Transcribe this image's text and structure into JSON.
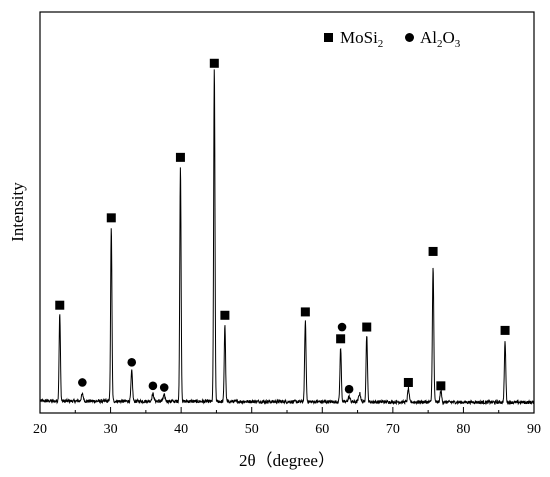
{
  "chart_data": {
    "type": "line",
    "title": "",
    "xlabel": "2θ（degree）",
    "ylabel": "Intensity",
    "xlim": [
      20,
      90
    ],
    "ylim": [
      0,
      100
    ],
    "x_ticks": [
      20,
      30,
      40,
      50,
      60,
      70,
      80,
      90
    ],
    "x_tick_labels": [
      "20",
      "30",
      "40",
      "50",
      "60",
      "70",
      "80",
      "90"
    ],
    "grid": false,
    "legend_position": "top-right",
    "legend": [
      {
        "marker": "square",
        "text": "MoSi",
        "sub": "2",
        "text2": ""
      },
      {
        "marker": "circle",
        "text": "Al",
        "sub": "2",
        "text2": "O",
        "sub2": "3"
      }
    ],
    "baseline": 1.5,
    "peaks": [
      {
        "x": 22.8,
        "y": 26,
        "w": 0.13
      },
      {
        "x": 26.0,
        "y": 2,
        "w": 0.2
      },
      {
        "x": 30.1,
        "y": 52,
        "w": 0.13
      },
      {
        "x": 33.0,
        "y": 9,
        "w": 0.15
      },
      {
        "x": 36.0,
        "y": 2.2,
        "w": 0.2
      },
      {
        "x": 37.6,
        "y": 1.8,
        "w": 0.2
      },
      {
        "x": 39.9,
        "y": 70,
        "w": 0.13
      },
      {
        "x": 44.7,
        "y": 99,
        "w": 0.13
      },
      {
        "x": 46.2,
        "y": 23,
        "w": 0.13
      },
      {
        "x": 57.6,
        "y": 24,
        "w": 0.14
      },
      {
        "x": 62.6,
        "y": 16,
        "w": 0.14
      },
      {
        "x": 63.8,
        "y": 1.5,
        "w": 0.2
      },
      {
        "x": 65.3,
        "y": 2.5,
        "w": 0.2
      },
      {
        "x": 66.3,
        "y": 20,
        "w": 0.14
      },
      {
        "x": 72.2,
        "y": 4,
        "w": 0.15
      },
      {
        "x": 75.7,
        "y": 40,
        "w": 0.14
      },
      {
        "x": 76.8,
        "y": 3.5,
        "w": 0.15
      },
      {
        "x": 85.9,
        "y": 18,
        "w": 0.14
      }
    ],
    "markers": [
      {
        "x": 22.8,
        "y": 30,
        "type": "square"
      },
      {
        "x": 26.0,
        "y": 7,
        "type": "circle"
      },
      {
        "x": 30.1,
        "y": 56,
        "type": "square"
      },
      {
        "x": 33.0,
        "y": 13,
        "type": "circle"
      },
      {
        "x": 36.0,
        "y": 6,
        "type": "circle"
      },
      {
        "x": 37.6,
        "y": 5.5,
        "type": "circle"
      },
      {
        "x": 39.9,
        "y": 74,
        "type": "square"
      },
      {
        "x": 44.7,
        "y": 102,
        "type": "square"
      },
      {
        "x": 46.2,
        "y": 27,
        "type": "square"
      },
      {
        "x": 57.6,
        "y": 28,
        "type": "square"
      },
      {
        "x": 62.6,
        "y": 20,
        "type": "square"
      },
      {
        "x": 62.8,
        "y": 23.5,
        "type": "circle"
      },
      {
        "x": 63.8,
        "y": 5,
        "type": "circle"
      },
      {
        "x": 66.3,
        "y": 23.5,
        "type": "square"
      },
      {
        "x": 72.2,
        "y": 7,
        "type": "square"
      },
      {
        "x": 75.7,
        "y": 46,
        "type": "square"
      },
      {
        "x": 76.8,
        "y": 6,
        "type": "square"
      },
      {
        "x": 85.9,
        "y": 22.5,
        "type": "square"
      }
    ]
  }
}
